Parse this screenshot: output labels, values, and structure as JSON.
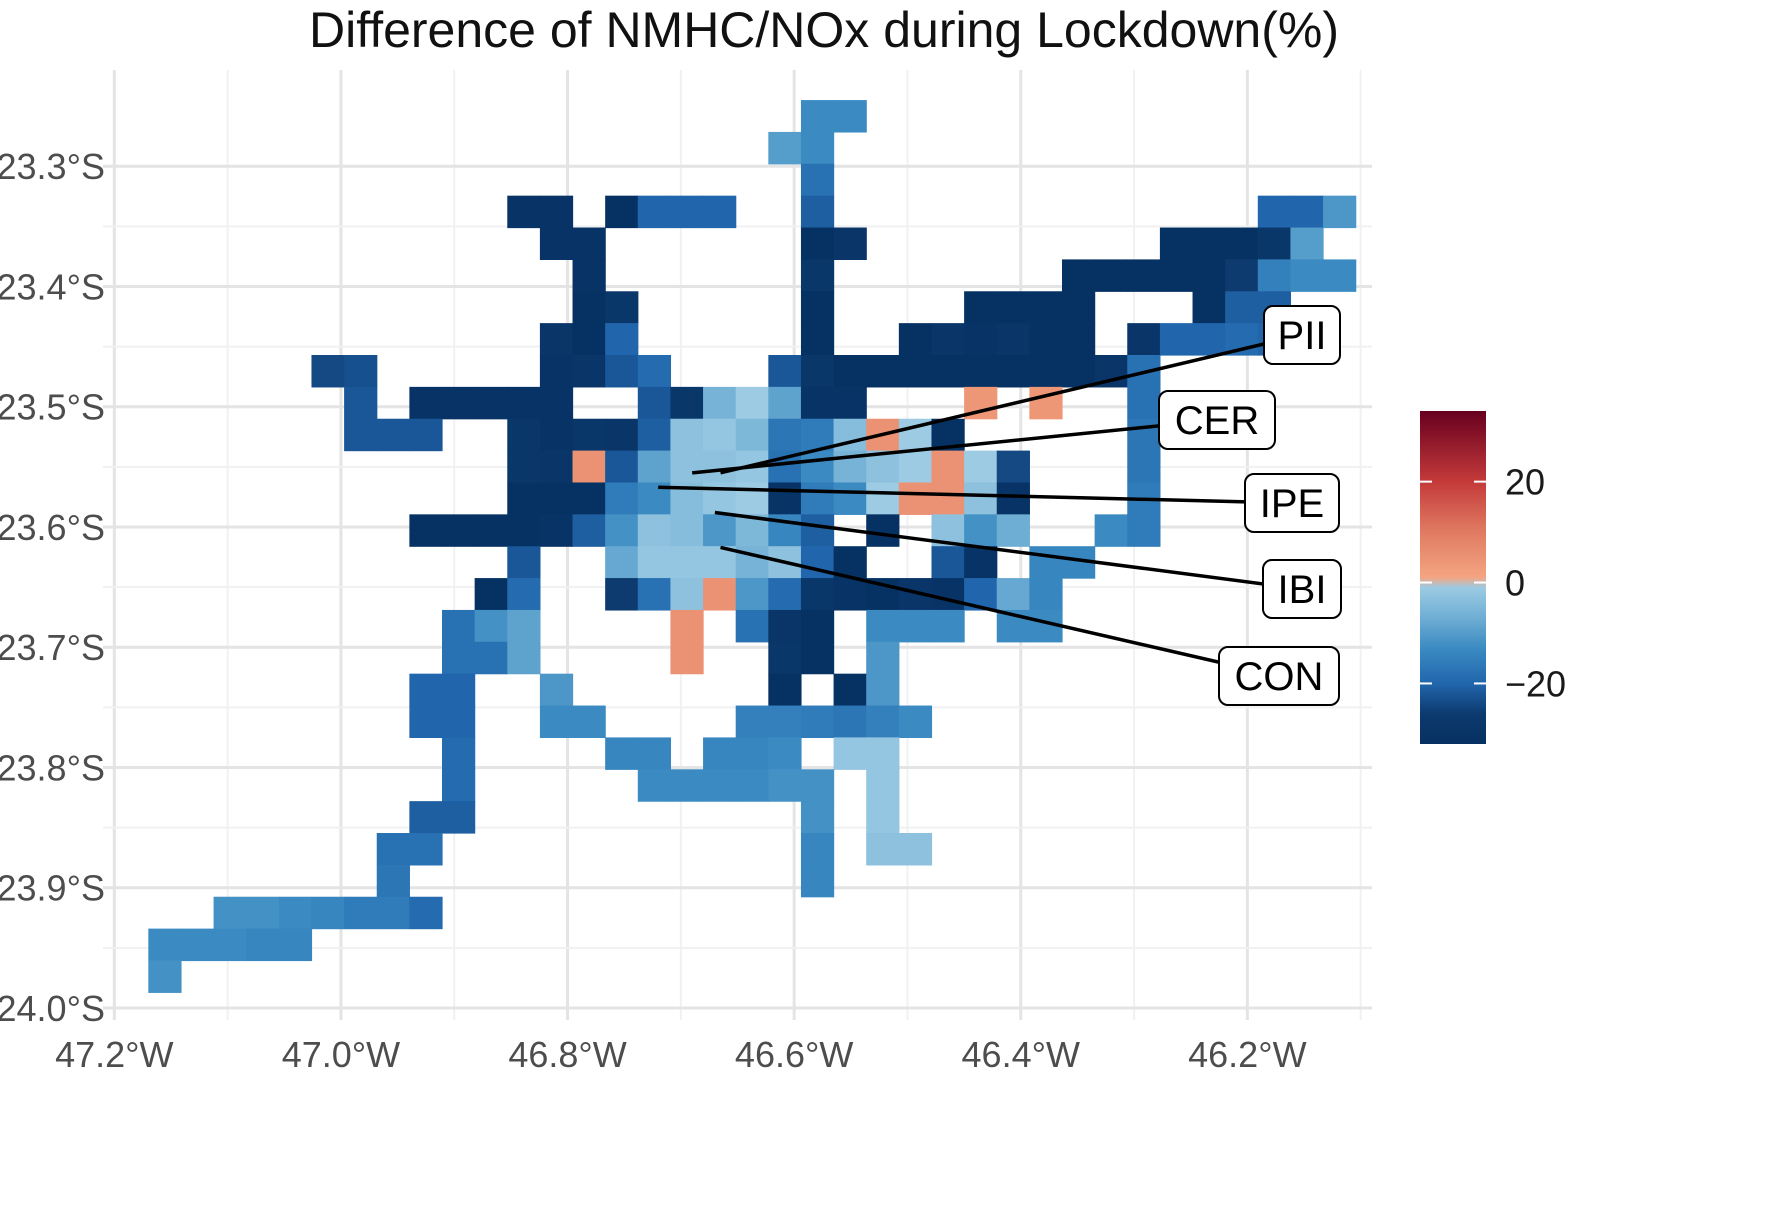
{
  "chart_data": {
    "type": "heatmap",
    "title": "Difference of NMHC/NOx during Lockdown(%)",
    "xlabel": "",
    "ylabel": "",
    "xlim": [
      -47.21,
      -46.09
    ],
    "ylim": [
      -24.01,
      -23.22
    ],
    "x_ticks": [
      {
        "value": -47.2,
        "label": "47.2°W"
      },
      {
        "value": -47.0,
        "label": "47.0°W"
      },
      {
        "value": -46.8,
        "label": "46.8°W"
      },
      {
        "value": -46.6,
        "label": "46.6°W"
      },
      {
        "value": -46.4,
        "label": "46.4°W"
      },
      {
        "value": -46.2,
        "label": "46.2°W"
      }
    ],
    "y_ticks": [
      {
        "value": -23.3,
        "label": "23.3°S"
      },
      {
        "value": -23.4,
        "label": "23.4°S"
      },
      {
        "value": -23.5,
        "label": "23.5°S"
      },
      {
        "value": -23.6,
        "label": "23.6°S"
      },
      {
        "value": -23.7,
        "label": "23.7°S"
      },
      {
        "value": -23.8,
        "label": "23.8°S"
      },
      {
        "value": -23.9,
        "label": "23.9°S"
      },
      {
        "value": -24.0,
        "label": "24.0°S"
      }
    ],
    "grid": true,
    "cell": {
      "x0": -47.17,
      "dx": 0.0288,
      "y0": -23.245,
      "dy": 0.0265
    },
    "colorbar": {
      "range": [
        -32,
        34
      ],
      "ticks": [
        {
          "value": 20,
          "label": "20"
        },
        {
          "value": 0,
          "label": "0"
        },
        {
          "value": -20,
          "label": "−20"
        }
      ],
      "position": "right"
    },
    "color_stops": [
      {
        "v": -32,
        "c": "#053061"
      },
      {
        "v": -26,
        "c": "#0d3a6f"
      },
      {
        "v": -20,
        "c": "#2166ac"
      },
      {
        "v": -13,
        "c": "#3b8bc2"
      },
      {
        "v": -7,
        "c": "#6faed4"
      },
      {
        "v": -1,
        "c": "#9ccbe3"
      },
      {
        "v": 1,
        "c": "#f4a582"
      },
      {
        "v": 10,
        "c": "#e07b62"
      },
      {
        "v": 20,
        "c": "#c43a3a"
      },
      {
        "v": 34,
        "c": "#67001f"
      }
    ],
    "rows": [
      {
        "j": 0,
        "segs": [
          [
            20,
            "-13,-13"
          ]
        ]
      },
      {
        "j": 1,
        "segs": [
          [
            19,
            "-10,-13"
          ]
        ]
      },
      {
        "j": 2,
        "segs": [
          [
            20,
            "-18"
          ]
        ]
      },
      {
        "j": 3,
        "segs": [
          [
            11,
            "-30,-30"
          ],
          [
            14,
            "-31,-20,-20,-20"
          ],
          [
            20,
            "-21"
          ],
          [
            34,
            "-20,-20,-11"
          ]
        ]
      },
      {
        "j": 4,
        "segs": [
          [
            12,
            "-30,-30"
          ],
          [
            20,
            "-31,-29"
          ],
          [
            31,
            "-31,-31,-31,-28"
          ],
          [
            35,
            "-10"
          ]
        ]
      },
      {
        "j": 5,
        "segs": [
          [
            13,
            "-30"
          ],
          [
            20,
            "-28"
          ],
          [
            28,
            "-31,-31,-31,-31,-31,-26"
          ],
          [
            34,
            "-15,-13,-13"
          ]
        ]
      },
      {
        "j": 6,
        "segs": [
          [
            13,
            "-31,-28"
          ],
          [
            20,
            "-31"
          ],
          [
            25,
            "-31,-31,-31,-31"
          ],
          [
            32,
            "-31"
          ],
          [
            33,
            "-21,-21"
          ]
        ]
      },
      {
        "j": 7,
        "segs": [
          [
            12,
            "-29,-31,-20"
          ],
          [
            20,
            "-31"
          ],
          [
            23,
            "-31,-29,-30,-29,-31,-31"
          ],
          [
            30,
            "-29,-20,-20,-19,-20,-20"
          ]
        ]
      },
      {
        "j": 8,
        "segs": [
          [
            5,
            "-24,-23"
          ],
          [
            12,
            "-30,-29,-22,-19"
          ],
          [
            19,
            "-22,-28,-31,-31,-31,-31,-31,-31,-31,-31,-29,-18"
          ]
        ]
      },
      {
        "j": 9,
        "segs": [
          [
            6,
            "-22"
          ],
          [
            8,
            "-30,-30,-30,-30,-30"
          ],
          [
            15,
            "-22,-28,-6,-1,-9"
          ],
          [
            20,
            "-30,-30"
          ],
          [
            25,
            "4"
          ],
          [
            27,
            "4"
          ],
          [
            30,
            "-18"
          ]
        ]
      },
      {
        "j": 10,
        "segs": [
          [
            6,
            "-22,-22,-22"
          ],
          [
            11,
            "-28,-30,-28,-29,-21,-3,-2,-5,-17,-16,-4,5,-1,-31"
          ],
          [
            30,
            "-17"
          ]
        ]
      },
      {
        "j": 11,
        "segs": [
          [
            11,
            "-28,-29,5,-22,-9,-3,-3,-2,-18,-13,-6,-3,-1,5,-1,-24"
          ],
          [
            30,
            "-17"
          ]
        ]
      },
      {
        "j": 12,
        "segs": [
          [
            11,
            "-31,-31,-31,-16,-13,-4,-2,-1,-30,-16,-13,-1,5,5,-3,-30"
          ],
          [
            30,
            "-16"
          ]
        ]
      },
      {
        "j": 13,
        "segs": [
          [
            8,
            "-31,-31,-31,-31,-30,-21,-12,-3,-4,-11,-5,-14,-21"
          ],
          [
            22,
            "-31"
          ],
          [
            24,
            "-3,-12,-7"
          ],
          [
            29,
            "-13,-16"
          ]
        ]
      },
      {
        "j": 14,
        "segs": [
          [
            11,
            "-22"
          ],
          [
            14,
            "-8,-2,-2,-2,-6,-3,-20,-31"
          ],
          [
            24,
            "-22,-30"
          ],
          [
            27,
            "-14,-14"
          ]
        ]
      },
      {
        "j": 15,
        "segs": [
          [
            10,
            "-31,-19"
          ],
          [
            14,
            "-26,-18,-3,5,-11,-19,-28,-30,-31,-29,-30,-20,-8"
          ],
          [
            27,
            "-14"
          ]
        ]
      },
      {
        "j": 16,
        "segs": [
          [
            9,
            "-18,-12,-9"
          ],
          [
            16,
            "5"
          ],
          [
            18,
            "-18,-29,-31"
          ],
          [
            22,
            "-13,-13,-13"
          ],
          [
            26,
            "-13,-13"
          ]
        ]
      },
      {
        "j": 17,
        "segs": [
          [
            9,
            "-18,-18,-9"
          ],
          [
            16,
            "5"
          ],
          [
            19,
            "-28,-31"
          ],
          [
            22,
            "-11"
          ]
        ]
      },
      {
        "j": 18,
        "segs": [
          [
            8,
            "-20,-20"
          ],
          [
            12,
            "-11"
          ],
          [
            19,
            "-31"
          ],
          [
            21,
            "-31"
          ],
          [
            22,
            "-11"
          ]
        ]
      },
      {
        "j": 19,
        "segs": [
          [
            8,
            "-20,-20"
          ],
          [
            12,
            "-13,-13"
          ],
          [
            18,
            "-15,-15,-16,-17,-15,-13"
          ]
        ]
      },
      {
        "j": 20,
        "segs": [
          [
            9,
            "-19"
          ],
          [
            14,
            "-14,-14"
          ],
          [
            17,
            "-14,-14,-13"
          ],
          [
            21,
            "-2,-2"
          ]
        ]
      },
      {
        "j": 21,
        "segs": [
          [
            9,
            "-19"
          ],
          [
            15,
            "-13,-13,-13,-13,-12"
          ],
          [
            20,
            "-12"
          ],
          [
            22,
            "-2"
          ]
        ]
      },
      {
        "j": 22,
        "segs": [
          [
            8,
            "-21,-21"
          ],
          [
            20,
            "-12"
          ],
          [
            22,
            "-2"
          ]
        ]
      },
      {
        "j": 23,
        "segs": [
          [
            7,
            "-18,-18"
          ],
          [
            20,
            "-14"
          ],
          [
            22,
            "-3,-3"
          ]
        ]
      },
      {
        "j": 24,
        "segs": [
          [
            7,
            "-17"
          ],
          [
            20,
            "-14"
          ]
        ]
      },
      {
        "j": 25,
        "segs": [
          [
            2,
            "-12,-12,-13,-14,-16,-16,-19"
          ]
        ]
      },
      {
        "j": 26,
        "segs": [
          [
            0,
            "-13,-13,-13,-14,-14"
          ]
        ]
      },
      {
        "j": 27,
        "segs": [
          [
            0,
            "-12"
          ]
        ]
      }
    ],
    "annotations": [
      {
        "label": "PII",
        "x": -46.665,
        "y": -23.555
      },
      {
        "label": "CER",
        "x": -46.69,
        "y": -23.555
      },
      {
        "label": "IPE",
        "x": -46.72,
        "y": -23.567
      },
      {
        "label": "IBI",
        "x": -46.67,
        "y": -23.588
      },
      {
        "label": "CON",
        "x": -46.665,
        "y": -23.617
      }
    ]
  }
}
